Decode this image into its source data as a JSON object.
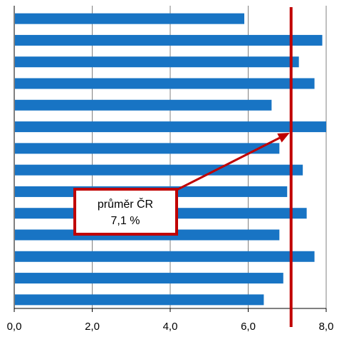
{
  "chart_data": {
    "type": "bar",
    "orientation": "horizontal",
    "categories": [
      "",
      "",
      "",
      "",
      "",
      "",
      "",
      "",
      "",
      "",
      "",
      "",
      "",
      ""
    ],
    "values": [
      5.9,
      7.9,
      7.3,
      7.7,
      6.6,
      8.0,
      6.8,
      7.4,
      7.0,
      7.5,
      6.8,
      7.7,
      6.9,
      6.4
    ],
    "title": "",
    "xlabel": "",
    "ylabel": "",
    "xlim": [
      0,
      8
    ],
    "x_ticks": [
      "0,0",
      "2,0",
      "4,0",
      "6,0",
      "8,0"
    ],
    "grid": "vertical",
    "bar_color": "#1874C4",
    "reference_line": {
      "value": 7.1,
      "color": "#C00000",
      "label_line1": "průměr ČR",
      "label_line2": "7,1 %"
    }
  }
}
